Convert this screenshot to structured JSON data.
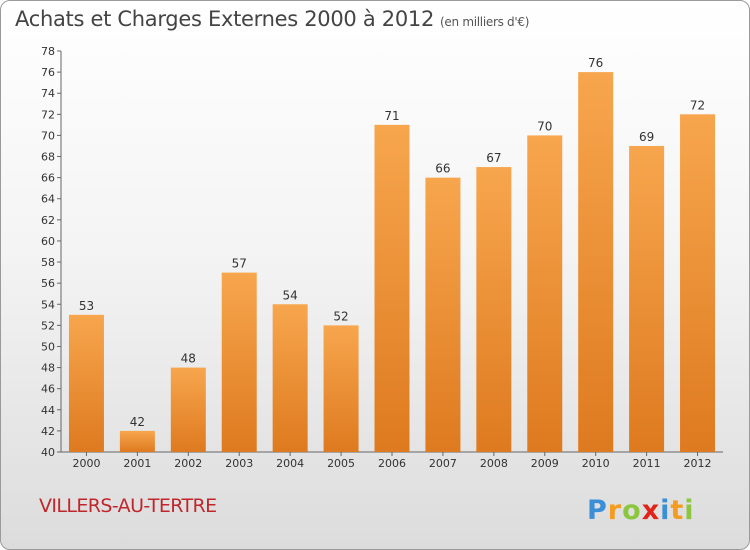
{
  "header": {
    "title": "Achats et Charges Externes 2000 à 2012",
    "subtitle": "(en milliers d'€)"
  },
  "footer": {
    "commune": "VILLERS-AU-TERTRE",
    "logo_text": "Proxiti"
  },
  "colors": {
    "bar_top": "#f7a64e",
    "bar_bottom": "#de7a1f",
    "commune": "#c0272d"
  },
  "chart_data": {
    "type": "bar",
    "title": "Achats et Charges Externes 2000 à 2012",
    "subtitle": "(en milliers d'€)",
    "categories": [
      "2000",
      "2001",
      "2002",
      "2003",
      "2004",
      "2005",
      "2006",
      "2007",
      "2008",
      "2009",
      "2010",
      "2011",
      "2012"
    ],
    "values": [
      53,
      42,
      48,
      57,
      54,
      52,
      71,
      66,
      67,
      70,
      76,
      69,
      72
    ],
    "ylim": [
      40,
      78
    ],
    "yticks": [
      40,
      42,
      44,
      46,
      48,
      50,
      52,
      54,
      56,
      58,
      60,
      62,
      64,
      66,
      68,
      70,
      72,
      74,
      76,
      78
    ],
    "xlabel": "",
    "ylabel": "",
    "grid": false,
    "legend": "none"
  }
}
